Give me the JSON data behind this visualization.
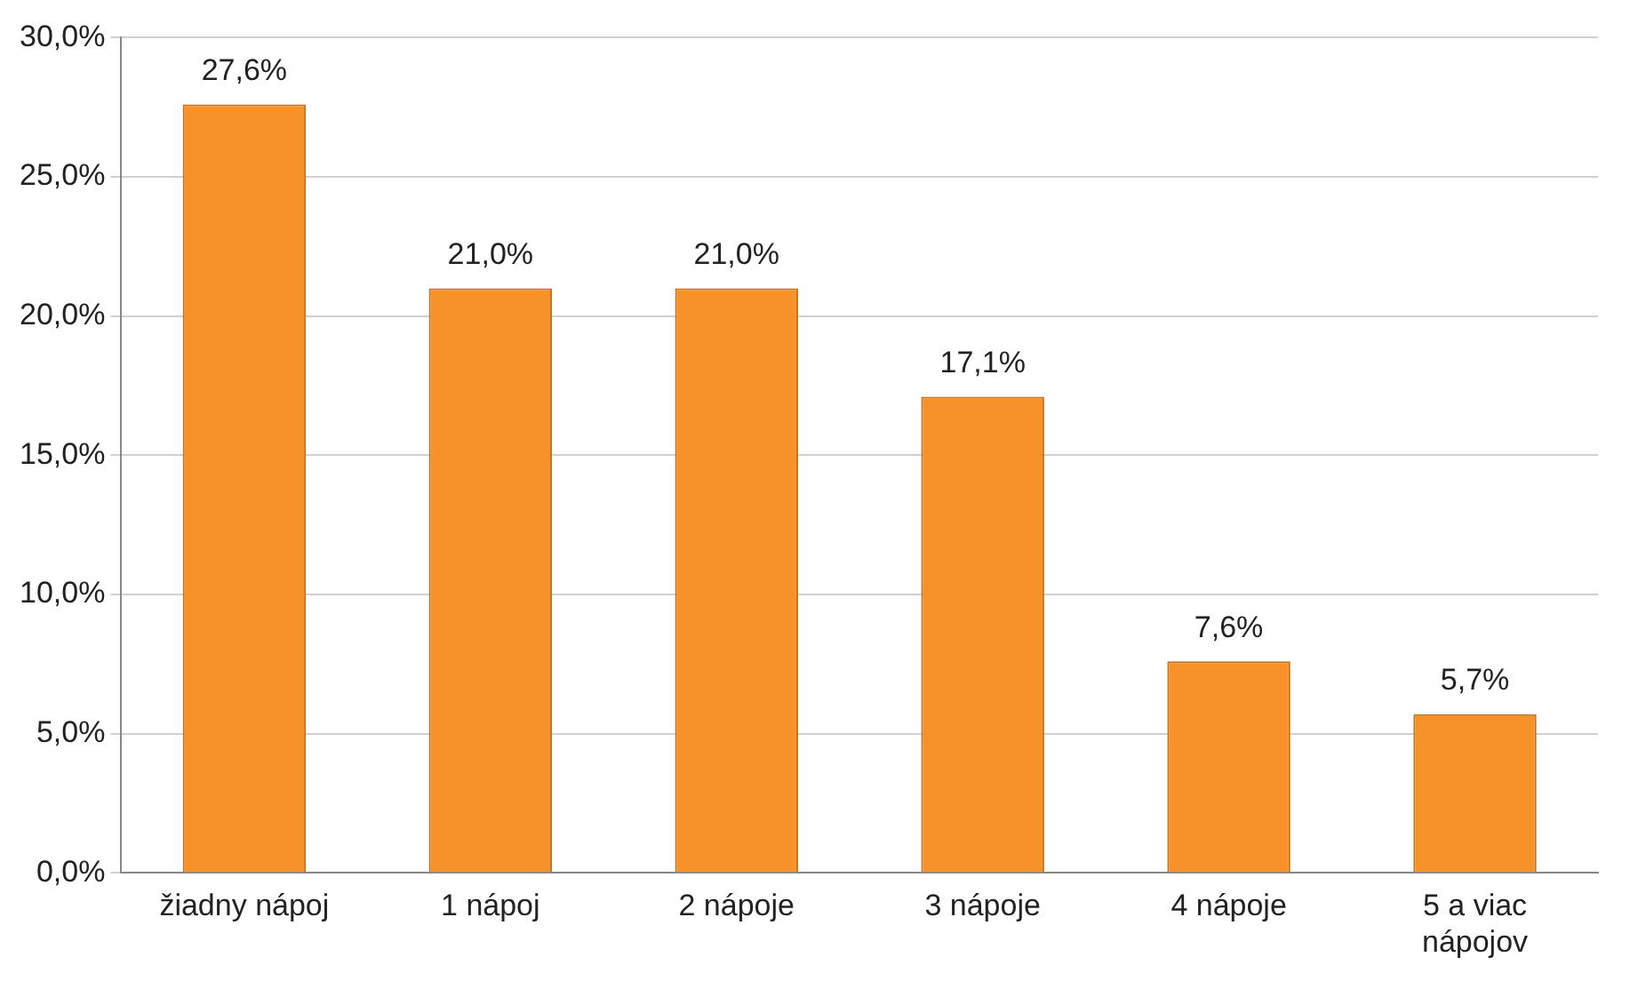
{
  "chart_data": {
    "type": "bar",
    "categories": [
      "žiadny nápoj",
      "1 nápoj",
      "2 nápoje",
      "3 nápoje",
      "4 nápoje",
      "5 a viac nápojov"
    ],
    "values": [
      27.6,
      21.0,
      21.0,
      17.1,
      7.6,
      5.7
    ],
    "value_labels": [
      "27,6%",
      "21,0%",
      "21,0%",
      "17,1%",
      "7,6%",
      "5,7%"
    ],
    "color": "#f7922a",
    "ylim": [
      0,
      30
    ],
    "yticks": [
      {
        "value": 0,
        "label": "0,0%"
      },
      {
        "value": 5,
        "label": "5,0%"
      },
      {
        "value": 10,
        "label": "10,0%"
      },
      {
        "value": 15,
        "label": "15,0%"
      },
      {
        "value": 20,
        "label": "20,0%"
      },
      {
        "value": 25,
        "label": "25,0%"
      },
      {
        "value": 30,
        "label": "30,0%"
      }
    ],
    "grid": "y",
    "legend": false
  }
}
